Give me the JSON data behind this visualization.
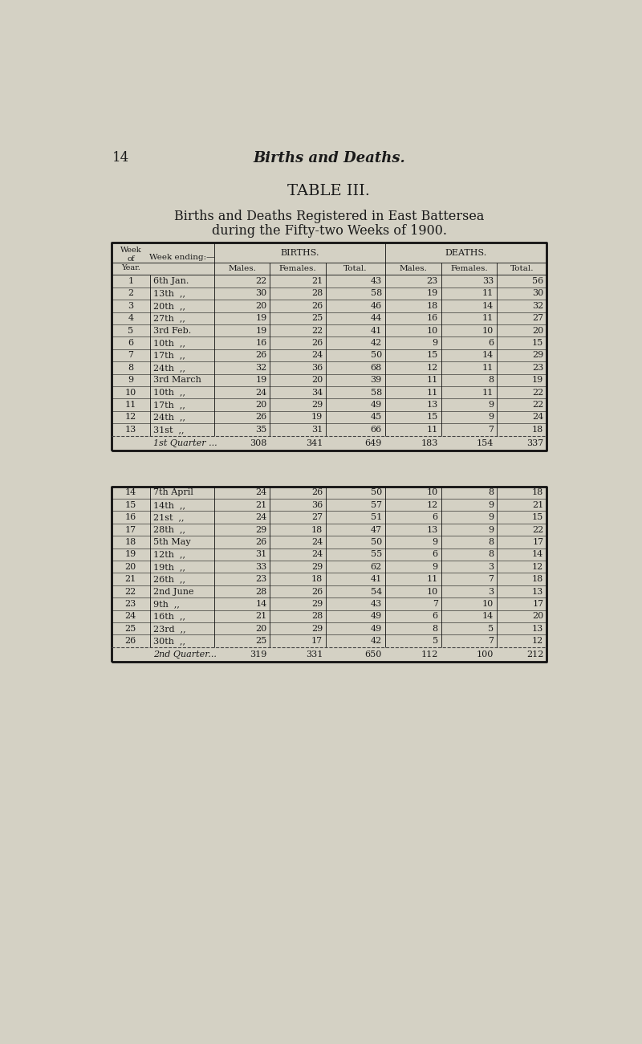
{
  "page_num": "14",
  "page_title": "Births and Deaths.",
  "table_title": "TABLE III.",
  "subtitle_line1": "Births and Deaths Registered in East Battersea",
  "subtitle_line2": "during the Fifty-two Weeks of 1900.",
  "bg_color": "#d4d1c4",
  "text_color": "#1a1a1a",
  "table1": {
    "births_header": "BIRTHS.",
    "deaths_header": "DEATHS.",
    "rows": [
      [
        "1",
        "6th Jan.",
        "22",
        "21",
        "43",
        "23",
        "33",
        "56"
      ],
      [
        "2",
        "13th  ,,",
        "30",
        "28",
        "58",
        "19",
        "11",
        "30"
      ],
      [
        "3",
        "20th  ,,",
        "20",
        "26",
        "46",
        "18",
        "14",
        "32"
      ],
      [
        "4",
        "27th  ,,",
        "19",
        "25",
        "44",
        "16",
        "11",
        "27"
      ],
      [
        "5",
        "3rd Feb.",
        "19",
        "22",
        "41",
        "10",
        "10",
        "20"
      ],
      [
        "6",
        "10th  ,,",
        "16",
        "26",
        "42",
        "9",
        "6",
        "15"
      ],
      [
        "7",
        "17th  ,,",
        "26",
        "24",
        "50",
        "15",
        "14",
        "29"
      ],
      [
        "8",
        "24th  ,,",
        "32",
        "36",
        "68",
        "12",
        "11",
        "23"
      ],
      [
        "9",
        "3rd March",
        "19",
        "20",
        "39",
        "11",
        "8",
        "19"
      ],
      [
        "10",
        "10th  ,,",
        "24",
        "34",
        "58",
        "11",
        "11",
        "22"
      ],
      [
        "11",
        "17th  ,,",
        "20",
        "29",
        "49",
        "13",
        "9",
        "22"
      ],
      [
        "12",
        "24th  ,,",
        "26",
        "19",
        "45",
        "15",
        "9",
        "24"
      ],
      [
        "13",
        "31st  ,,",
        "35",
        "31",
        "66",
        "11",
        "7",
        "18"
      ]
    ],
    "quarter_row": [
      "",
      "1st Quarter ...",
      "308",
      "341",
      "649",
      "183",
      "154",
      "337"
    ]
  },
  "table2": {
    "rows": [
      [
        "14",
        "7th April",
        "24",
        "26",
        "50",
        "10",
        "8",
        "18"
      ],
      [
        "15",
        "14th  ,,",
        "21",
        "36",
        "57",
        "12",
        "9",
        "21"
      ],
      [
        "16",
        "21st  ,,",
        "24",
        "27",
        "51",
        "6",
        "9",
        "15"
      ],
      [
        "17",
        "28th  ,,",
        "29",
        "18",
        "47",
        "13",
        "9",
        "22"
      ],
      [
        "18",
        "5th May",
        "26",
        "24",
        "50",
        "9",
        "8",
        "17"
      ],
      [
        "19",
        "12th  ,,",
        "31",
        "24",
        "55",
        "6",
        "8",
        "14"
      ],
      [
        "20",
        "19th  ,,",
        "33",
        "29",
        "62",
        "9",
        "3",
        "12"
      ],
      [
        "21",
        "26th  ,,",
        "23",
        "18",
        "41",
        "11",
        "7",
        "18"
      ],
      [
        "22",
        "2nd June",
        "28",
        "26",
        "54",
        "10",
        "3",
        "13"
      ],
      [
        "23",
        "9th  ,,",
        "14",
        "29",
        "43",
        "7",
        "10",
        "17"
      ],
      [
        "24",
        "16th  ,,",
        "21",
        "28",
        "49",
        "6",
        "14",
        "20"
      ],
      [
        "25",
        "23rd  ,,",
        "20",
        "29",
        "49",
        "8",
        "5",
        "13"
      ],
      [
        "26",
        "30th  ,,",
        "25",
        "17",
        "42",
        "5",
        "7",
        "12"
      ]
    ],
    "quarter_row": [
      "",
      "2nd Quarter...",
      "319",
      "331",
      "650",
      "112",
      "100",
      "212"
    ]
  }
}
